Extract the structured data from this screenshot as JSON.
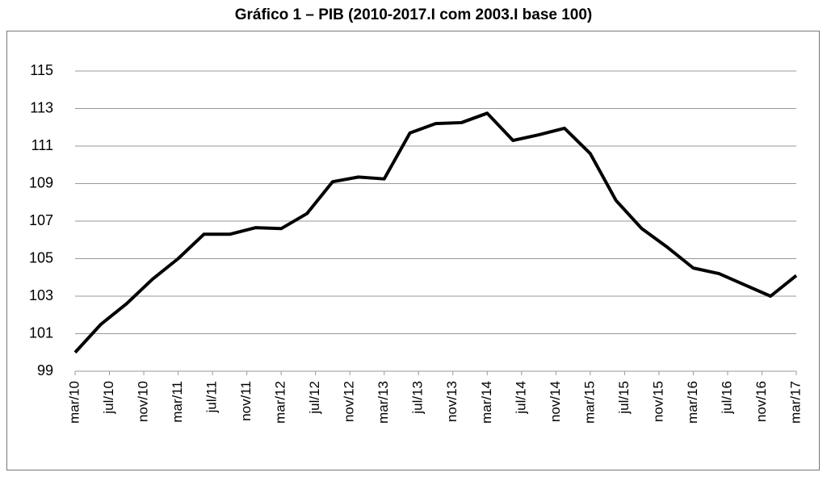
{
  "chart_data": {
    "type": "line",
    "title": "Gráfico 1 – PIB (2010-2017.I com 2003.I base 100)",
    "x": [
      0,
      3,
      6,
      9,
      12,
      15,
      18,
      21,
      24,
      27,
      30,
      33,
      36,
      39,
      42,
      45,
      48,
      51,
      54,
      57,
      60,
      63,
      66,
      69,
      72,
      75,
      78,
      81,
      84
    ],
    "series": [
      {
        "color": "#000000",
        "values": [
          100,
          101.5,
          102.6,
          103.9,
          105,
          106.3,
          106.3,
          106.65,
          106.6,
          107.4,
          109.1,
          109.35,
          109.25,
          111.7,
          112.2,
          112.25,
          112.75,
          111.3,
          111.6,
          111.95,
          110.6,
          108.1,
          106.6,
          105.6,
          104.5,
          104.2,
          103.6,
          103,
          104.1
        ]
      }
    ],
    "xlim": [
      0,
      84
    ],
    "xticks": [
      {
        "value": 0,
        "label": "mar/10"
      },
      {
        "value": 4,
        "label": "jul/10"
      },
      {
        "value": 8,
        "label": "nov/10"
      },
      {
        "value": 12,
        "label": "mar/11"
      },
      {
        "value": 16,
        "label": "jul/11"
      },
      {
        "value": 20,
        "label": "nov/11"
      },
      {
        "value": 24,
        "label": "mar/12"
      },
      {
        "value": 28,
        "label": "jul/12"
      },
      {
        "value": 32,
        "label": "nov/12"
      },
      {
        "value": 36,
        "label": "mar/13"
      },
      {
        "value": 40,
        "label": "jul/13"
      },
      {
        "value": 44,
        "label": "nov/13"
      },
      {
        "value": 48,
        "label": "mar/14"
      },
      {
        "value": 52,
        "label": "jul/14"
      },
      {
        "value": 56,
        "label": "nov/14"
      },
      {
        "value": 60,
        "label": "mar/15"
      },
      {
        "value": 64,
        "label": "jul/15"
      },
      {
        "value": 68,
        "label": "nov/15"
      },
      {
        "value": 72,
        "label": "mar/16"
      },
      {
        "value": 76,
        "label": "jul/16"
      },
      {
        "value": 80,
        "label": "nov/16"
      },
      {
        "value": 84,
        "label": "mar/17"
      }
    ],
    "ylim": [
      99,
      115
    ],
    "yticks": [
      99,
      101,
      103,
      105,
      107,
      109,
      111,
      113,
      115
    ],
    "grid": true
  }
}
